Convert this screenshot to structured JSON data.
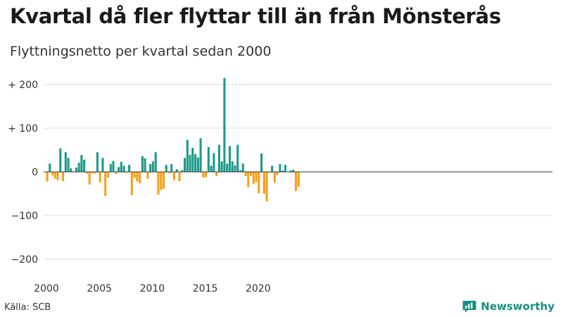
{
  "header": {
    "title": "Kvartal då fler flyttar till än från Mönsterås",
    "subtitle": "Flyttningsnetto per kvartal sedan 2000"
  },
  "footer": {
    "source": "Källa: SCB",
    "brand": "Newsworthy",
    "brand_icon": "newsworthy-logo-icon"
  },
  "colors": {
    "positive": "#1f9a8a",
    "negative": "#f5a01a",
    "grid": "#dddddd",
    "zero_line": "#333333"
  },
  "chart_data": {
    "type": "bar",
    "title": "Kvartal då fler flyttar till än från Mönsterås",
    "subtitle": "Flyttningsnetto per kvartal sedan 2000",
    "x_start": "2000 Q1",
    "x_ticks": [
      "2000",
      "2005",
      "2010",
      "2015",
      "2020"
    ],
    "y_ticks": [
      "+ 200",
      "+ 100",
      "0",
      "−100",
      "−200"
    ],
    "ylim": [
      -200,
      200
    ],
    "grid": true,
    "values": [
      -22,
      19,
      -8,
      -15,
      -19,
      54,
      -21,
      45,
      32,
      8,
      0,
      10,
      21,
      39,
      28,
      -4,
      -29,
      -3,
      -4,
      45,
      -24,
      32,
      -55,
      -13,
      18,
      25,
      -5,
      11,
      23,
      14,
      -2,
      16,
      -53,
      -14,
      -22,
      -26,
      36,
      31,
      -16,
      18,
      24,
      45,
      -52,
      -41,
      -39,
      16,
      -3,
      18,
      -19,
      6,
      -21,
      4,
      32,
      73,
      39,
      55,
      41,
      33,
      77,
      -13,
      -12,
      57,
      14,
      43,
      -10,
      62,
      24,
      215,
      19,
      59,
      24,
      15,
      62,
      4,
      19,
      -10,
      -35,
      -9,
      -27,
      -23,
      -49,
      42,
      -50,
      -68,
      -2,
      14,
      -25,
      -7,
      18,
      3,
      16,
      0,
      3,
      5,
      -44,
      -34
    ]
  }
}
